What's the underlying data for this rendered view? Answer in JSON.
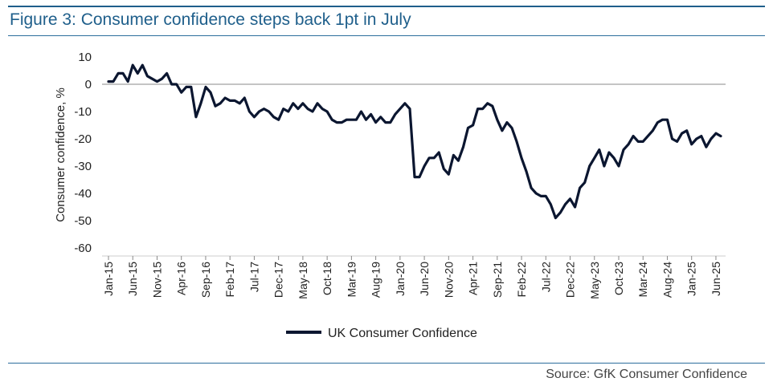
{
  "figure_title": "Figure 3: Consumer confidence steps back 1pt in July",
  "source": "Source: GfK Consumer Confidence",
  "colors": {
    "accent": "#1f5f8b",
    "line": "#0b1630",
    "axis": "#888888"
  },
  "chart_data": {
    "type": "line",
    "title": "Figure 3: Consumer confidence steps back 1pt in July",
    "xlabel": "",
    "ylabel": "Consumer confidence, %",
    "ylim": [
      -60,
      10
    ],
    "yticks": [
      10,
      0,
      -10,
      -20,
      -30,
      -40,
      -50,
      -60
    ],
    "x_start": "Jan-15",
    "x_end": "Jul-25",
    "x_tick_labels": [
      "Jan-15",
      "Jun-15",
      "Nov-15",
      "Apr-16",
      "Sep-16",
      "Feb-17",
      "Jul-17",
      "Dec-17",
      "May-18",
      "Oct-18",
      "Mar-19",
      "Aug-19",
      "Jan-20",
      "Jun-20",
      "Nov-20",
      "Apr-21",
      "Sep-21",
      "Feb-22",
      "Jul-22",
      "Dec-22",
      "May-23",
      "Oct-23",
      "Mar-24",
      "Aug-24",
      "Jan-25",
      "Jun-25"
    ],
    "legend": "bottom",
    "grid": false,
    "series": [
      {
        "name": "UK Consumer Confidence",
        "start": "Jan-15",
        "frequency": "monthly",
        "values": [
          1,
          1,
          4,
          4,
          1,
          7,
          4,
          7,
          3,
          2,
          1,
          2,
          4,
          0,
          0,
          -3,
          -1,
          -1,
          -12,
          -7,
          -1,
          -3,
          -8,
          -7,
          -5,
          -6,
          -6,
          -7,
          -5,
          -10,
          -12,
          -10,
          -9,
          -10,
          -12,
          -13,
          -9,
          -10,
          -7,
          -9,
          -7,
          -9,
          -10,
          -7,
          -9,
          -10,
          -13,
          -14,
          -14,
          -13,
          -13,
          -13,
          -10,
          -13,
          -11,
          -14,
          -12,
          -14,
          -14,
          -11,
          -9,
          -7,
          -9,
          -34,
          -34,
          -30,
          -27,
          -27,
          -25,
          -31,
          -33,
          -26,
          -28,
          -23,
          -16,
          -15,
          -9,
          -9,
          -7,
          -8,
          -13,
          -17,
          -14,
          -16,
          -21,
          -27,
          -32,
          -38,
          -40,
          -41,
          -41,
          -44,
          -49,
          -47,
          -44,
          -42,
          -45,
          -38,
          -36,
          -30,
          -27,
          -24,
          -30,
          -25,
          -27,
          -30,
          -24,
          -22,
          -19,
          -21,
          -21,
          -19,
          -17,
          -14,
          -13,
          -13,
          -20,
          -21,
          -18,
          -17,
          -22,
          -20,
          -19,
          -23,
          -20,
          -18,
          -19
        ]
      }
    ]
  }
}
